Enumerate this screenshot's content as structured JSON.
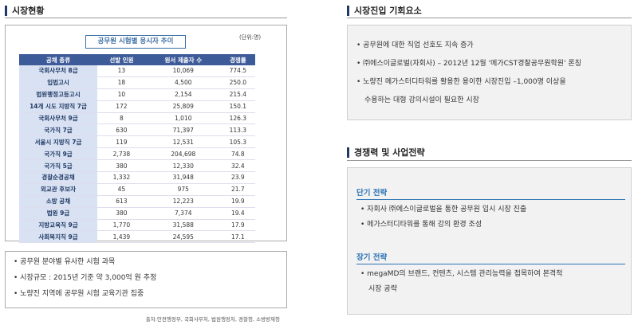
{
  "left": {
    "section_title": "시장현황",
    "table_title": "공무원 시험별 응시자 추이",
    "unit": "(단위:명)",
    "columns": [
      "공채 종류",
      "선발 인원",
      "원서 제출자 수",
      "경쟁률"
    ],
    "rows": [
      [
        "국회사무처 8급",
        "13",
        "10,069",
        "774.5"
      ],
      [
        "입법고시",
        "18",
        "4,500",
        "250.0"
      ],
      [
        "법원행정고등고시",
        "10",
        "2,154",
        "215.4"
      ],
      [
        "14개 시도 지방직 7급",
        "172",
        "25,809",
        "150.1"
      ],
      [
        "국회사무처 9급",
        "8",
        "1,010",
        "126.3"
      ],
      [
        "국가직 7급",
        "630",
        "71,397",
        "113.3"
      ],
      [
        "서울시 지방직 7급",
        "119",
        "12,531",
        "105.3"
      ],
      [
        "국가직 9급",
        "2,738",
        "204,698",
        "74.8"
      ],
      [
        "국가직 5급",
        "380",
        "12,330",
        "32.4"
      ],
      [
        "경찰순경공채",
        "1,332",
        "31,948",
        "23.9"
      ],
      [
        "외교관 후보자",
        "45",
        "975",
        "21.7"
      ],
      [
        "소방 공채",
        "613",
        "12,223",
        "19.9"
      ],
      [
        "법원 9급",
        "380",
        "7,374",
        "19.4"
      ],
      [
        "지방교육직 9급",
        "1,770",
        "31,588",
        "17.9"
      ],
      [
        "사회복지직 9급",
        "1,439",
        "24,595",
        "17.1"
      ]
    ],
    "bullets": [
      "• 공무원 분야별 유사한 시험 과목",
      "• 시장규모 : 2015년 기준 약 3,000억 원 추정",
      "• 노량진 지역에 공무원 시험 교육기관 집중"
    ],
    "source": "출처:안전행정부, 국회사무처, 법원행정처, 경찰청, 소방방재청"
  },
  "right_top": {
    "section_title": "시장진입 기회요소",
    "bullets": [
      "• 공무원에 대한 직업 선호도 지속 증가",
      "• ㈜에스이글로벌(자회사) – 2012년 12월 '메가CST경찰공무원학원' 론칭",
      "• 노량진 메가스터디타워를 활용한 용이한 시장진입 –1,000명 이상을",
      "수용하는 대형 강의시설이 필요한 시장"
    ]
  },
  "right_bottom": {
    "section_title": "경쟁력 및 사업전략",
    "short_title": "단기 전략",
    "short_bullets": [
      "• 자회사 ㈜에스이글로벌을 통한 공무원 입시 시장 진출",
      "• 메가스터디타워를 통해 강의 환경 조성"
    ],
    "long_title": "장기 전략",
    "long_bullets": [
      "• megaMD의 브랜드, 컨텐츠, 시스템 관리능력을 접목하여 본격적",
      "시장 공략"
    ]
  }
}
